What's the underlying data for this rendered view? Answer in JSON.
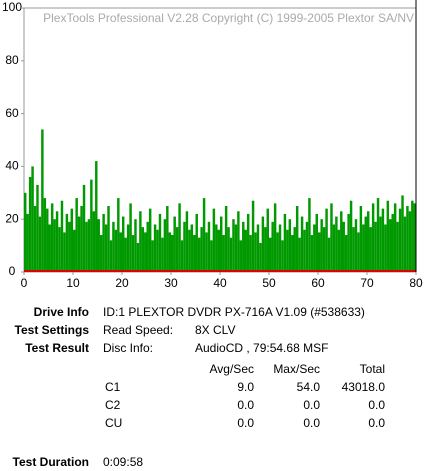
{
  "chart_data": {
    "type": "bar",
    "watermark": "PlexTools Professional V2.28 Copyright (C) 1999-2005 Plextor SA/NV",
    "color": "#009900",
    "x": [
      0,
      0.5,
      1,
      1.5,
      2,
      2.5,
      3,
      3.5,
      4,
      4.5,
      5,
      5.5,
      6,
      6.5,
      7,
      7.5,
      8,
      8.5,
      9,
      9.5,
      10,
      10.5,
      11,
      11.5,
      12,
      12.5,
      13,
      13.5,
      14,
      14.5,
      15,
      15.5,
      16,
      16.5,
      17,
      17.5,
      18,
      18.5,
      19,
      19.5,
      20,
      20.5,
      21,
      21.5,
      22,
      22.5,
      23,
      23.5,
      24,
      24.5,
      25,
      25.5,
      26,
      26.5,
      27,
      27.5,
      28,
      28.5,
      29,
      29.5,
      30,
      30.5,
      31,
      31.5,
      32,
      32.5,
      33,
      33.5,
      34,
      34.5,
      35,
      35.5,
      36,
      36.5,
      37,
      37.5,
      38,
      38.5,
      39,
      39.5,
      40,
      40.5,
      41,
      41.5,
      42,
      42.5,
      43,
      43.5,
      44,
      44.5,
      45,
      45.5,
      46,
      46.5,
      47,
      47.5,
      48,
      48.5,
      49,
      49.5,
      50,
      50.5,
      51,
      51.5,
      52,
      52.5,
      53,
      53.5,
      54,
      54.5,
      55,
      55.5,
      56,
      56.5,
      57,
      57.5,
      58,
      58.5,
      59,
      59.5,
      60,
      60.5,
      61,
      61.5,
      62,
      62.5,
      63,
      63.5,
      64,
      64.5,
      65,
      65.5,
      66,
      66.5,
      67,
      67.5,
      68,
      68.5,
      69,
      69.5,
      70,
      70.5,
      71,
      71.5,
      72,
      72.5,
      73,
      73.5,
      74,
      74.5,
      75,
      75.5,
      76,
      76.5,
      77,
      77.5,
      78,
      78.5,
      79,
      79.5
    ],
    "values": [
      30,
      22,
      36,
      40,
      25,
      33,
      21,
      54,
      28,
      24,
      18,
      26,
      20,
      23,
      17,
      27,
      15,
      22,
      19,
      24,
      16,
      28,
      21,
      25,
      33,
      19,
      20,
      35,
      23,
      42,
      20,
      14,
      22,
      18,
      25,
      12,
      19,
      16,
      28,
      15,
      21,
      13,
      18,
      26,
      14,
      20,
      11,
      23,
      17,
      15,
      19,
      24,
      12,
      18,
      16,
      22,
      13,
      20,
      25,
      15,
      14,
      21,
      17,
      26,
      12,
      19,
      23,
      16,
      18,
      14,
      22,
      13,
      17,
      28,
      15,
      19,
      12,
      24,
      18,
      16,
      21,
      14,
      25,
      17,
      13,
      20,
      18,
      23,
      12,
      19,
      16,
      22,
      14,
      27,
      15,
      18,
      11,
      21,
      17,
      24,
      13,
      19,
      26,
      15,
      18,
      12,
      22,
      16,
      20,
      14,
      17,
      25,
      13,
      21,
      16,
      19,
      28,
      14,
      18,
      22,
      15,
      20,
      17,
      24,
      13,
      26,
      18,
      21,
      16,
      23,
      19,
      14,
      22,
      27,
      17,
      20,
      15,
      25,
      18,
      21,
      23,
      17,
      26,
      19,
      28,
      21,
      24,
      18,
      27,
      20,
      22,
      26,
      19,
      24,
      29,
      21,
      25,
      23,
      27,
      26
    ],
    "xlim": [
      0,
      80
    ],
    "xticks": [
      0,
      10,
      20,
      30,
      40,
      50,
      60,
      70,
      80
    ],
    "ylim": [
      0,
      100
    ],
    "yticks": [
      0,
      20,
      40,
      60,
      80,
      100
    ]
  },
  "info": {
    "drive_label": "Drive Info",
    "drive": "ID:1 PLEXTOR DVDR PX-716A V1.09 (#538633)",
    "settings_label": "Test Settings",
    "speed_label": "Read Speed:",
    "speed": "8X CLV",
    "result_label": "Test Result",
    "disc_label": "Disc Info:",
    "disc": "AudioCD , 79:54.68 MSF",
    "table": {
      "header": [
        "Avg/Sec",
        "Max/Sec",
        "Total"
      ],
      "rows": [
        [
          "C1",
          "9.0",
          "54.0",
          "43018.0"
        ],
        [
          "C2",
          "0.0",
          "0.0",
          "0.0"
        ],
        [
          "CU",
          "0.0",
          "0.0",
          "0.0"
        ]
      ]
    },
    "duration_label": "Test Duration",
    "duration": "0:09:58"
  }
}
